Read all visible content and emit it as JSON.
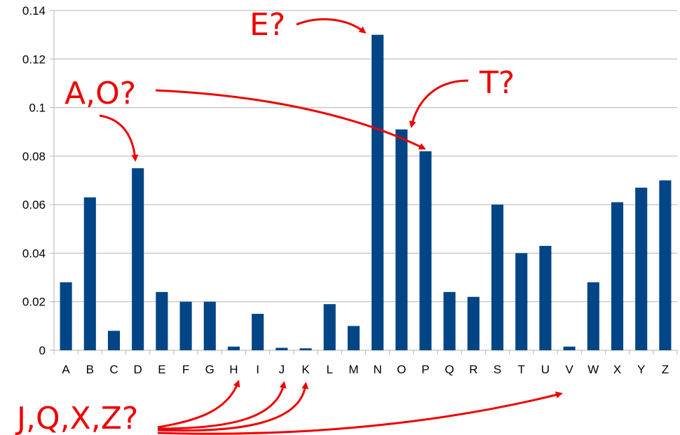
{
  "chart_data": {
    "type": "bar",
    "title": "",
    "xlabel": "",
    "ylabel": "",
    "categories": [
      "A",
      "B",
      "C",
      "D",
      "E",
      "F",
      "G",
      "H",
      "I",
      "J",
      "K",
      "L",
      "M",
      "N",
      "O",
      "P",
      "Q",
      "R",
      "S",
      "T",
      "U",
      "V",
      "W",
      "X",
      "Y",
      "Z"
    ],
    "values": [
      0.028,
      0.063,
      0.008,
      0.075,
      0.024,
      0.02,
      0.02,
      0.0015,
      0.015,
      0.001,
      0.0008,
      0.019,
      0.01,
      0.13,
      0.091,
      0.082,
      0.024,
      0.022,
      0.06,
      0.04,
      0.043,
      0.0015,
      0.028,
      0.061,
      0.067,
      0.07
    ],
    "ylim": [
      0,
      0.14
    ],
    "yticks": [
      "0",
      "0.02",
      "0.04",
      "0.06",
      "0.08",
      "0.1",
      "0.12",
      "0.14"
    ],
    "grid": true,
    "bar_color": "#004586",
    "grid_color": "#b3b3b3",
    "annotations": [
      {
        "text": "E?",
        "targets": [
          "N"
        ]
      },
      {
        "text": "A,O?",
        "targets": [
          "D",
          "P"
        ]
      },
      {
        "text": "T?",
        "targets": [
          "O"
        ]
      },
      {
        "text": "J,Q,X,Z?",
        "targets": [
          "H",
          "J",
          "K",
          "V"
        ]
      }
    ],
    "annotation_color": "#ee0000"
  }
}
